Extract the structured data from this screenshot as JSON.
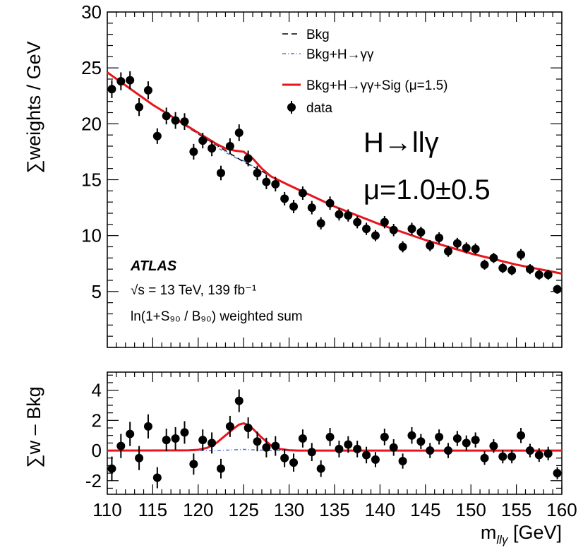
{
  "chart_data": [
    {
      "type": "scatter",
      "ylabel": "∑weights / GeV",
      "ylim": [
        0,
        30
      ],
      "yticks": [
        5,
        10,
        15,
        20,
        25,
        30
      ],
      "xlim": [
        110,
        160
      ],
      "series": [
        {
          "name": "Bkg",
          "kind": "line",
          "style": "dashed",
          "color": "#000000",
          "x": [
            110,
            115,
            120,
            125,
            130,
            135,
            140,
            145,
            150,
            155,
            160
          ],
          "y": [
            24.6,
            21.7,
            19.1,
            16.6,
            14.5,
            12.6,
            11.0,
            9.6,
            8.4,
            7.4,
            6.6
          ]
        },
        {
          "name": "Bkg+H→γγ",
          "kind": "line",
          "style": "dash-dot",
          "color": "#4f7fd6",
          "x": [
            110,
            115,
            120,
            122,
            124,
            125,
            126,
            128,
            130,
            135,
            140,
            145,
            150,
            155,
            160
          ],
          "y": [
            24.6,
            21.7,
            19.1,
            17.9,
            17.0,
            16.7,
            16.2,
            15.3,
            14.5,
            12.6,
            11.0,
            9.6,
            8.4,
            7.4,
            6.6
          ]
        },
        {
          "name": "Bkg+H→γγ+Sig (μ=1.5)",
          "kind": "line",
          "style": "solid",
          "color": "#e8141c",
          "x": [
            110,
            115,
            120,
            122,
            123,
            124,
            125,
            126,
            127,
            128,
            130,
            135,
            140,
            145,
            150,
            155,
            160
          ],
          "y": [
            24.6,
            21.7,
            19.2,
            18.2,
            17.8,
            17.6,
            17.5,
            16.9,
            16.0,
            15.3,
            14.5,
            12.6,
            11.0,
            9.6,
            8.4,
            7.4,
            6.6
          ]
        },
        {
          "name": "data",
          "kind": "points",
          "color": "#000000",
          "x": [
            110.5,
            111.5,
            112.5,
            113.5,
            114.5,
            115.5,
            116.5,
            117.5,
            118.5,
            119.5,
            120.5,
            121.5,
            122.5,
            123.5,
            124.5,
            125.5,
            126.5,
            127.5,
            128.5,
            129.5,
            130.5,
            131.5,
            132.5,
            133.5,
            134.5,
            135.5,
            136.5,
            137.5,
            138.5,
            139.5,
            140.5,
            141.5,
            142.5,
            143.5,
            144.5,
            145.5,
            146.5,
            147.5,
            148.5,
            149.5,
            150.5,
            151.5,
            152.5,
            153.5,
            154.5,
            155.5,
            156.5,
            157.5,
            158.5,
            159.5
          ],
          "y": [
            23.1,
            23.8,
            23.9,
            21.5,
            23.0,
            18.9,
            20.7,
            20.3,
            20.2,
            17.5,
            18.5,
            17.8,
            15.6,
            18.0,
            19.2,
            16.9,
            15.6,
            14.8,
            14.6,
            13.3,
            12.6,
            13.8,
            12.5,
            11.1,
            12.9,
            11.9,
            11.8,
            11.2,
            10.6,
            10.0,
            11.2,
            10.5,
            9.0,
            10.6,
            10.3,
            9.1,
            9.8,
            8.6,
            9.3,
            8.9,
            8.8,
            7.4,
            8.0,
            7.1,
            6.9,
            8.3,
            7.0,
            6.5,
            6.5,
            5.2
          ],
          "yerr": [
            0.8,
            0.8,
            0.8,
            0.8,
            0.8,
            0.7,
            0.75,
            0.75,
            0.75,
            0.7,
            0.7,
            0.7,
            0.65,
            0.7,
            0.75,
            0.7,
            0.65,
            0.65,
            0.65,
            0.6,
            0.6,
            0.6,
            0.6,
            0.55,
            0.6,
            0.55,
            0.55,
            0.55,
            0.55,
            0.5,
            0.55,
            0.55,
            0.5,
            0.55,
            0.5,
            0.5,
            0.5,
            0.5,
            0.5,
            0.5,
            0.5,
            0.45,
            0.45,
            0.45,
            0.45,
            0.5,
            0.45,
            0.45,
            0.45,
            0.4
          ]
        }
      ],
      "legend_position": "top-right",
      "experiment": "ATLAS",
      "info_lines": [
        "√s = 13 TeV, 139 fb⁻¹",
        "ln(1+S₉₀ / B₉₀) weighted sum"
      ],
      "annotations": [
        "H→llγ",
        "μ=1.0±0.5"
      ]
    },
    {
      "type": "scatter",
      "ylabel": "∑w – Bkg",
      "xlabel": "m_llγ [GeV]",
      "ylim": [
        -2.9,
        5.2
      ],
      "yticks": [
        -2,
        0,
        2,
        4
      ],
      "xlim": [
        110,
        160
      ],
      "xticks": [
        110,
        115,
        120,
        125,
        130,
        135,
        140,
        145,
        150,
        155,
        160
      ],
      "series": [
        {
          "name": "Bkg+H→γγ",
          "kind": "line",
          "style": "dash-dot",
          "color": "#4f7fd6",
          "x": [
            110,
            122,
            124,
            125,
            126,
            128,
            160
          ],
          "y": [
            0,
            0,
            0.05,
            0.08,
            0.05,
            0,
            0
          ]
        },
        {
          "name": "Bkg+H→γγ+Sig (μ=1.5)",
          "kind": "line",
          "style": "solid",
          "color": "#e8141c",
          "x": [
            110,
            119,
            120,
            121,
            122,
            123,
            124,
            124.5,
            125,
            125.5,
            126,
            127,
            128,
            129,
            130,
            131,
            160
          ],
          "y": [
            0,
            0.01,
            0.05,
            0.18,
            0.5,
            1.0,
            1.5,
            1.72,
            1.8,
            1.7,
            1.45,
            0.85,
            0.35,
            0.1,
            0.02,
            0,
            0
          ]
        },
        {
          "name": "data",
          "kind": "points",
          "color": "#000000",
          "x": [
            110.5,
            111.5,
            112.5,
            113.5,
            114.5,
            115.5,
            116.5,
            117.5,
            118.5,
            119.5,
            120.5,
            121.5,
            122.5,
            123.5,
            124.5,
            125.5,
            126.5,
            127.5,
            128.5,
            129.5,
            130.5,
            131.5,
            132.5,
            133.5,
            134.5,
            135.5,
            136.5,
            137.5,
            138.5,
            139.5,
            140.5,
            141.5,
            142.5,
            143.5,
            144.5,
            145.5,
            146.5,
            147.5,
            148.5,
            149.5,
            150.5,
            151.5,
            152.5,
            153.5,
            154.5,
            155.5,
            156.5,
            157.5,
            158.5,
            159.5
          ],
          "y": [
            -1.2,
            0.3,
            1.1,
            -0.5,
            1.6,
            -1.8,
            0.7,
            0.8,
            1.2,
            -0.9,
            0.7,
            0.5,
            -1.2,
            1.6,
            3.3,
            1.5,
            0.6,
            0.2,
            0.3,
            -0.5,
            -0.8,
            0.8,
            -0.1,
            -1.2,
            0.9,
            0.1,
            0.4,
            0.1,
            -0.3,
            -0.6,
            0.9,
            0.2,
            -0.7,
            1.0,
            0.6,
            0.0,
            0.9,
            0.0,
            0.8,
            0.5,
            0.7,
            -0.5,
            0.3,
            -0.4,
            -0.4,
            1.0,
            0.0,
            -0.3,
            -0.2,
            -1.5
          ],
          "yerr": [
            0.8,
            0.8,
            0.8,
            0.8,
            0.8,
            0.7,
            0.75,
            0.75,
            0.75,
            0.7,
            0.7,
            0.7,
            0.65,
            0.7,
            0.75,
            0.7,
            0.65,
            0.65,
            0.65,
            0.6,
            0.6,
            0.6,
            0.6,
            0.55,
            0.6,
            0.55,
            0.55,
            0.55,
            0.55,
            0.5,
            0.55,
            0.55,
            0.5,
            0.55,
            0.5,
            0.5,
            0.5,
            0.5,
            0.5,
            0.5,
            0.5,
            0.45,
            0.45,
            0.45,
            0.45,
            0.5,
            0.45,
            0.45,
            0.45,
            0.4
          ]
        }
      ]
    }
  ]
}
